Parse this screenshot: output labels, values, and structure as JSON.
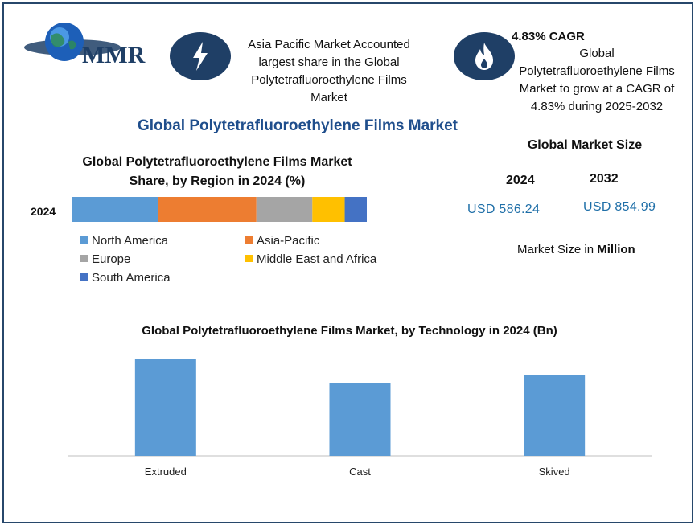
{
  "logo": {
    "text": "MMR"
  },
  "info_left": {
    "icon": "lightning-icon",
    "lines": [
      "Asia Pacific Market Accounted",
      "largest share in the Global",
      "Polytetrafluoroethylene  Films",
      "Market"
    ]
  },
  "info_right": {
    "icon": "flame-icon",
    "title": "4.83% CAGR",
    "lines": [
      "Global",
      "Polytetrafluoroethylene Films",
      "Market to grow at a CAGR of",
      "4.83% during 2025-2032"
    ]
  },
  "main_title": "Global Polytetrafluoroethylene  Films Market",
  "market_size": {
    "title": "Global Market Size",
    "year1": "2024",
    "year2": "2032",
    "value1": "USD 586.24",
    "value2": "USD 854.99",
    "unit_prefix": "Market Size in ",
    "unit_bold": "Million"
  },
  "colors": {
    "north_america": "#5b9bd5",
    "asia_pacific": "#ed7d31",
    "europe": "#a5a5a5",
    "mea": "#ffc000",
    "south_america": "#4472c4",
    "bar": "#5b9bd5",
    "brand": "#1f3f66"
  },
  "chart_data": [
    {
      "type": "bar",
      "orientation": "horizontal-stacked",
      "title": "Global Polytetrafluoroethylene Films Market Share, by Region in 2024 (%)",
      "categories": [
        "2024"
      ],
      "series": [
        {
          "name": "North America",
          "values": [
            29
          ]
        },
        {
          "name": "Asia-Pacific",
          "values": [
            33.5
          ]
        },
        {
          "name": "Europe",
          "values": [
            19
          ]
        },
        {
          "name": "Middle East and Africa",
          "values": [
            11
          ]
        },
        {
          "name": "South America",
          "values": [
            7.5
          ]
        }
      ],
      "legend": "bottom"
    },
    {
      "type": "bar",
      "title": "Global Polytetrafluoroethylene Films Market, by Technology in 2024 (Bn)",
      "categories": [
        "Extruded",
        "Cast",
        "Skived"
      ],
      "values": [
        0.24,
        0.18,
        0.2
      ],
      "ylim": [
        0,
        0.25
      ]
    }
  ]
}
